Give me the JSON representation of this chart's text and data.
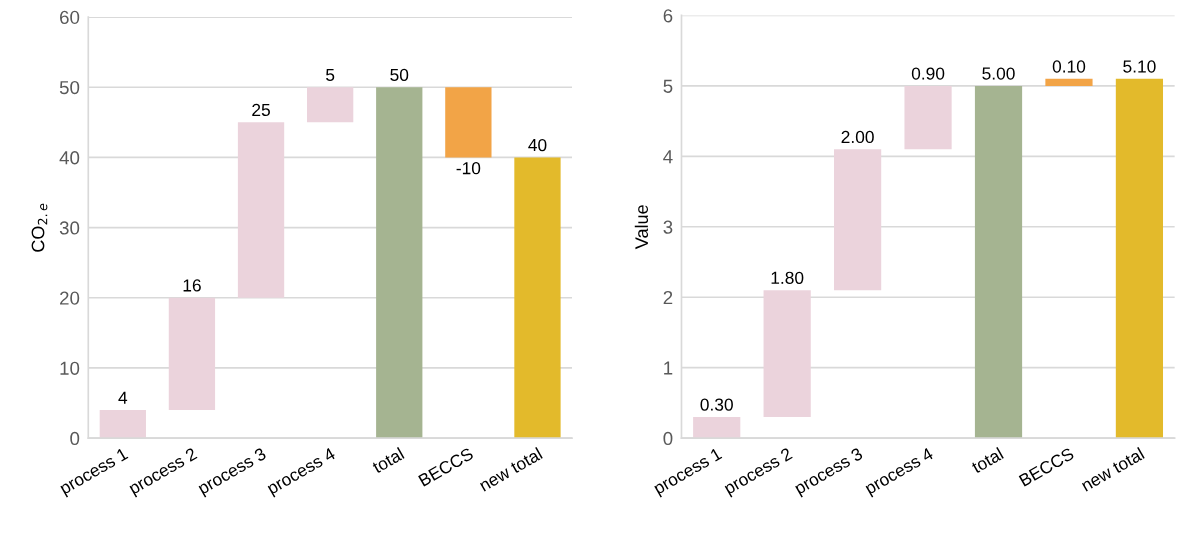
{
  "chart_data": [
    {
      "type": "bar",
      "ylabel": "CO$_{2.e}$",
      "categories": [
        "process 1",
        "process 2",
        "process 3",
        "process 4",
        "total",
        "BECCS",
        "new total"
      ],
      "values": [
        4,
        16,
        25,
        5,
        50,
        -10,
        40
      ],
      "base": [
        0,
        4,
        20,
        45,
        0,
        50,
        0
      ],
      "colors": [
        "#ebd3dc",
        "#ebd3dc",
        "#ebd3dc",
        "#ebd3dc",
        "#a5b491",
        "#f2a447",
        "#e3ba2b"
      ],
      "value_labels": [
        "4",
        "16",
        "25",
        "5",
        "50",
        "-10",
        "40"
      ],
      "ylim": [
        0,
        60
      ],
      "yticks": [
        0,
        10,
        20,
        30,
        40,
        50,
        60
      ],
      "grid": "y"
    },
    {
      "type": "bar",
      "ylabel": "Value",
      "categories": [
        "process 1",
        "process 2",
        "process 3",
        "process 4",
        "total",
        "BECCS",
        "new total"
      ],
      "values": [
        0.3,
        1.8,
        2.0,
        0.9,
        5.0,
        0.1,
        5.1
      ],
      "base": [
        0,
        0.3,
        2.1,
        4.1,
        0,
        5.0,
        0
      ],
      "colors": [
        "#ebd3dc",
        "#ebd3dc",
        "#ebd3dc",
        "#ebd3dc",
        "#a5b491",
        "#f2a447",
        "#e3ba2b"
      ],
      "value_labels": [
        "0.30",
        "1.80",
        "2.00",
        "0.90",
        "5.00",
        "0.10",
        "5.10"
      ],
      "ylim": [
        0,
        6
      ],
      "yticks": [
        0,
        1,
        2,
        3,
        4,
        5,
        6
      ],
      "grid": "y"
    }
  ]
}
